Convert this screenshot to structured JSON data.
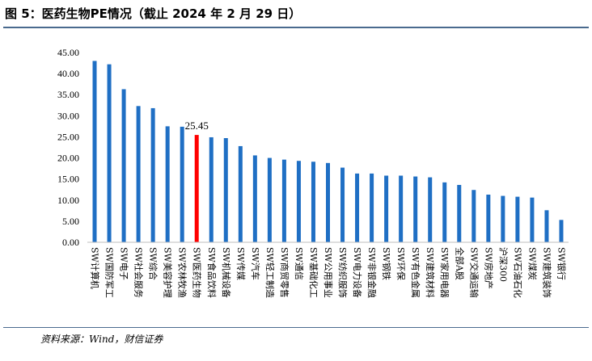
{
  "figure": {
    "title": "图 5：医药生物PE情况（截止 2024 年 2 月 29 日）",
    "source": "资料来源：Wind，财信证券"
  },
  "colors": {
    "bar": "#1f6fc4",
    "highlight": "#ff0000",
    "rule": "#4a6a8e"
  },
  "chart_data": {
    "type": "bar",
    "title": "",
    "xlabel": "",
    "ylabel": "",
    "ylim": [
      0,
      45
    ],
    "yticks": [
      "0.00",
      "5.00",
      "10.00",
      "15.00",
      "20.00",
      "25.00",
      "30.00",
      "35.00",
      "40.00",
      "45.00"
    ],
    "grid": false,
    "legend": "none",
    "highlight_category": "SW医药生物",
    "annotation": {
      "category": "SW医药生物",
      "text": "25.45"
    },
    "categories": [
      "SW计算机",
      "SW国防军工",
      "SW电子",
      "SW社会服务",
      "SW综合",
      "SW美容护理",
      "SW农林牧渔",
      "SW医药生物",
      "SW食品饮料",
      "SW机械设备",
      "SW传媒",
      "SW汽车",
      "SW轻工制造",
      "SW商贸零售",
      "SW通信",
      "SW基础化工",
      "SW公用事业",
      "SW纺织服饰",
      "SW电力设备",
      "SW非银金融",
      "SW钢铁",
      "SW环保",
      "SW有色金属",
      "SW建筑材料",
      "SW家用电器",
      "全部A股",
      "SW交通运输",
      "SW房地产",
      "沪深300",
      "SW石油石化",
      "SW煤炭",
      "SW建筑装饰",
      "SW银行"
    ],
    "values": [
      43.0,
      42.2,
      36.3,
      32.3,
      31.8,
      27.5,
      27.4,
      25.45,
      24.9,
      24.7,
      22.8,
      20.6,
      20.0,
      19.6,
      19.3,
      19.1,
      18.8,
      17.7,
      16.3,
      16.3,
      15.8,
      15.8,
      15.6,
      15.4,
      14.2,
      13.6,
      12.4,
      11.3,
      11.0,
      10.8,
      10.6,
      7.6,
      5.3
    ]
  }
}
